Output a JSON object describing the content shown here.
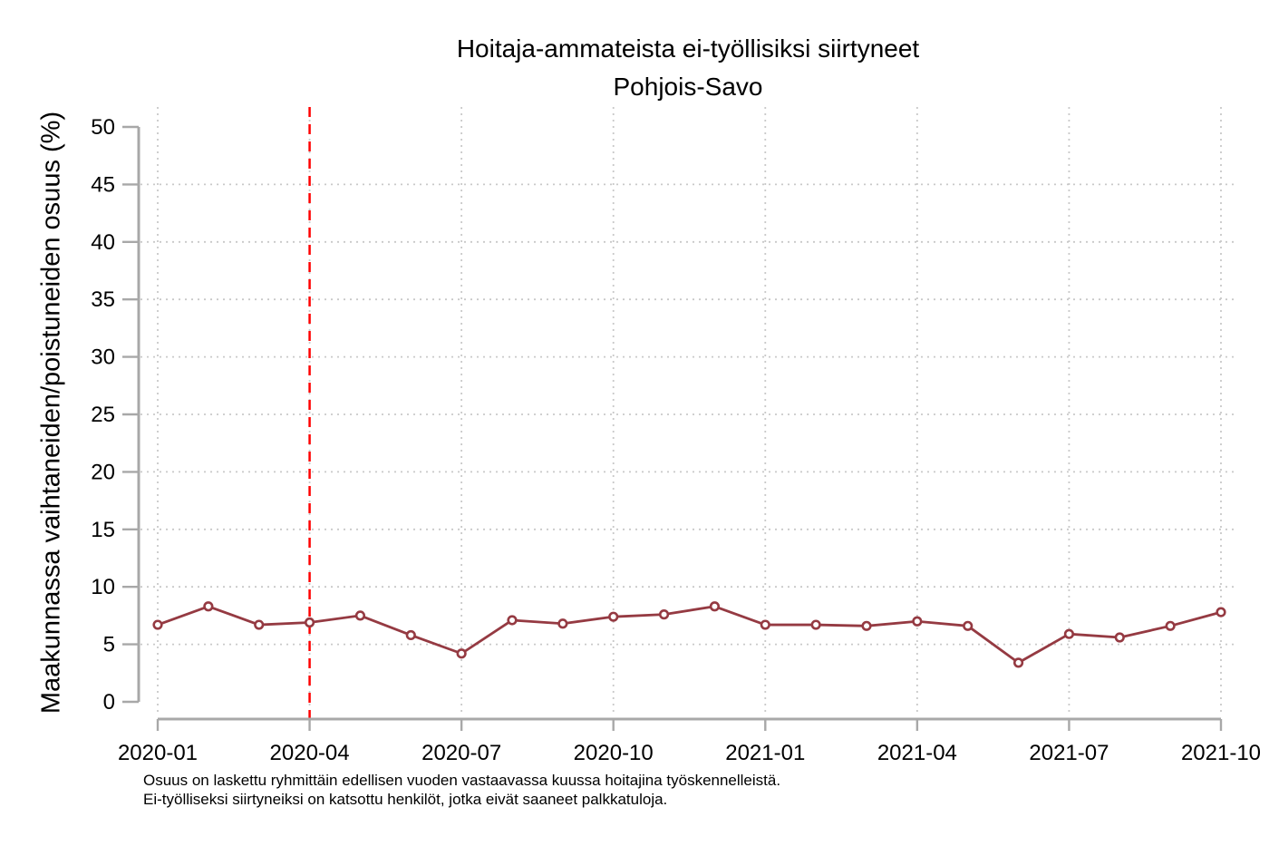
{
  "chart_data": {
    "type": "line",
    "title": "Hoitaja-ammateista ei-työllisiksi siirtyneet",
    "subtitle": "Pohjois-Savo",
    "ylabel": "Maakunnassa vaihtaneiden/poistuneiden osuus (%)",
    "xlabel": "",
    "x": [
      "2020-01",
      "2020-02",
      "2020-03",
      "2020-04",
      "2020-05",
      "2020-06",
      "2020-07",
      "2020-08",
      "2020-09",
      "2020-10",
      "2020-11",
      "2020-12",
      "2021-01",
      "2021-02",
      "2021-03",
      "2021-04",
      "2021-05",
      "2021-06",
      "2021-07",
      "2021-08",
      "2021-09",
      "2021-10"
    ],
    "series": [
      {
        "name": "Pohjois-Savo",
        "values": [
          6.7,
          8.3,
          6.7,
          6.9,
          7.5,
          5.8,
          4.2,
          7.1,
          6.8,
          7.4,
          7.6,
          8.3,
          6.7,
          6.7,
          6.6,
          7.0,
          6.6,
          3.4,
          5.9,
          5.6,
          6.6,
          7.8
        ]
      }
    ],
    "xticks": [
      "2020-01",
      "2020-04",
      "2020-07",
      "2020-10",
      "2021-01",
      "2021-04",
      "2021-07",
      "2021-10"
    ],
    "yticks": [
      0,
      5,
      10,
      15,
      20,
      25,
      30,
      35,
      40,
      45,
      50
    ],
    "ylim": [
      0,
      51.7
    ],
    "grid": {
      "style": "dotted",
      "horizontal_at": [
        5,
        10,
        15,
        20,
        25,
        30,
        35,
        40,
        45
      ],
      "vertical_at_xticks": true
    },
    "legend": "none",
    "reference_line": {
      "x": "2020-04",
      "style": "dashed",
      "color": "#ff0000"
    },
    "marker": "open-circle",
    "footnotes": [
      "Osuus on laskettu ryhmittäin edellisen vuoden vastaavassa kuussa hoitajina työskennelleistä.",
      "Ei-työlliseksi siirtyneiksi on katsottu henkilöt, jotka eivät saaneet palkkatuloja."
    ]
  },
  "colors": {
    "series_line": "#953a42",
    "marker_fill": "#ffffff",
    "reference_line": "#ff0000",
    "grid": "#c9c9c9",
    "axis": "#a8a8a8",
    "text": "#000000",
    "background": "#ffffff"
  }
}
